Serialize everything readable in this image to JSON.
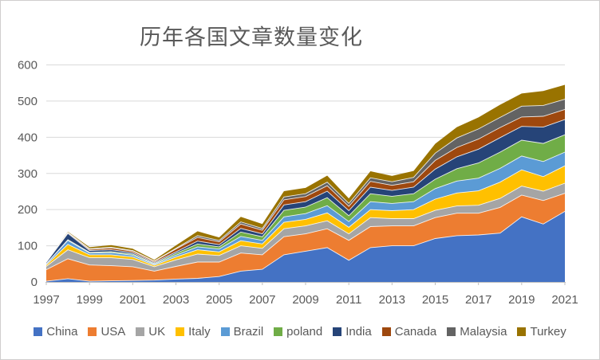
{
  "title": "历年各国文章数量变化",
  "chart_data": {
    "type": "area",
    "stacked": true,
    "grid": true,
    "legend_position": "bottom",
    "x": [
      1997,
      1998,
      1999,
      2000,
      2001,
      2002,
      2003,
      2004,
      2005,
      2006,
      2007,
      2008,
      2009,
      2010,
      2011,
      2012,
      2013,
      2014,
      2015,
      2016,
      2017,
      2018,
      2019,
      2020,
      2021
    ],
    "x_ticks": [
      "1997",
      "1999",
      "2001",
      "2003",
      "2005",
      "2007",
      "2009",
      "2011",
      "2013",
      "2015",
      "2017",
      "2019",
      "2021"
    ],
    "y_ticks": [
      "0",
      "100",
      "200",
      "300",
      "400",
      "500",
      "600"
    ],
    "ylim": [
      0,
      600
    ],
    "series": [
      {
        "name": "China",
        "color": "#4472C4",
        "values": [
          2,
          9,
          2,
          3,
          4,
          5,
          8,
          10,
          15,
          30,
          35,
          75,
          85,
          95,
          60,
          95,
          100,
          100,
          120,
          128,
          130,
          135,
          180,
          160,
          195
        ]
      },
      {
        "name": "USA",
        "color": "#ED7D31",
        "values": [
          32,
          55,
          45,
          42,
          38,
          25,
          35,
          45,
          40,
          50,
          40,
          50,
          48,
          52,
          55,
          58,
          55,
          55,
          58,
          62,
          60,
          71,
          60,
          65,
          50
        ]
      },
      {
        "name": "UK",
        "color": "#A5A5A5",
        "values": [
          9,
          25,
          20,
          22,
          20,
          12,
          18,
          22,
          18,
          20,
          18,
          22,
          22,
          22,
          18,
          25,
          20,
          20,
          20,
          20,
          22,
          25,
          25,
          26,
          28
        ]
      },
      {
        "name": "Italy",
        "color": "#FFC000",
        "values": [
          4,
          15,
          8,
          8,
          7,
          4,
          8,
          12,
          10,
          14,
          12,
          18,
          18,
          22,
          18,
          22,
          22,
          25,
          31,
          36,
          40,
          45,
          45,
          40,
          48
        ]
      },
      {
        "name": "Brazil",
        "color": "#5B9BD5",
        "values": [
          3,
          11,
          5,
          6,
          5,
          3,
          5,
          8,
          8,
          12,
          10,
          15,
          16,
          20,
          16,
          22,
          20,
          22,
          29,
          33,
          35,
          38,
          38,
          42,
          38
        ]
      },
      {
        "name": "poland",
        "color": "#70AD47",
        "values": [
          0,
          2,
          2,
          3,
          3,
          2,
          5,
          8,
          6,
          12,
          10,
          18,
          18,
          22,
          16,
          22,
          20,
          22,
          26,
          34,
          42,
          45,
          44,
          50,
          48
        ]
      },
      {
        "name": "India",
        "color": "#264478",
        "values": [
          4,
          17,
          5,
          5,
          4,
          3,
          4,
          8,
          6,
          10,
          8,
          15,
          15,
          18,
          14,
          18,
          16,
          18,
          28,
          33,
          38,
          40,
          38,
          45,
          42
        ]
      },
      {
        "name": "Canada",
        "color": "#9E480E",
        "values": [
          1,
          2,
          3,
          5,
          4,
          3,
          8,
          10,
          8,
          12,
          10,
          14,
          14,
          15,
          12,
          16,
          14,
          15,
          24,
          26,
          28,
          28,
          26,
          30,
          28
        ]
      },
      {
        "name": "Malaysia",
        "color": "#636363",
        "values": [
          0,
          1,
          2,
          2,
          2,
          1,
          2,
          5,
          4,
          6,
          5,
          8,
          8,
          10,
          8,
          10,
          10,
          12,
          20,
          26,
          28,
          28,
          30,
          30,
          28
        ]
      },
      {
        "name": "Turkey",
        "color": "#997300",
        "values": [
          1,
          2,
          4,
          6,
          5,
          3,
          8,
          12,
          8,
          14,
          12,
          16,
          16,
          18,
          14,
          18,
          16,
          18,
          26,
          30,
          32,
          35,
          35,
          40,
          40
        ]
      }
    ],
    "style": {
      "gridline_color": "#d9d9d9",
      "axis_color": "#bfbfbf",
      "text_color": "#595959",
      "band_separator_color": "#ffffff"
    }
  }
}
